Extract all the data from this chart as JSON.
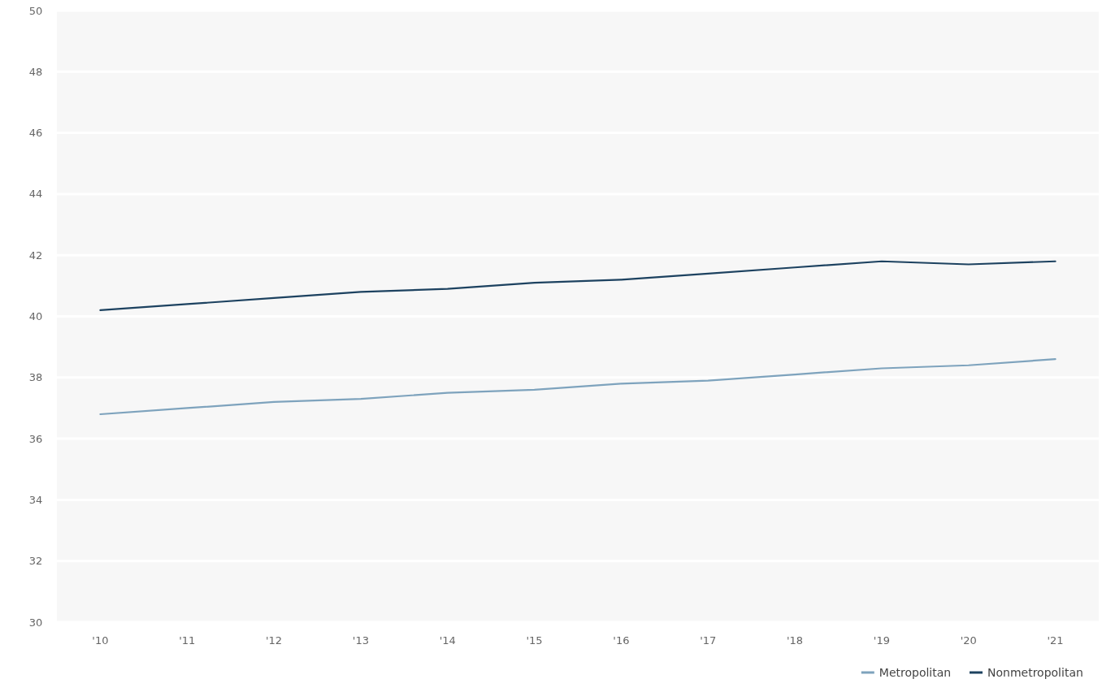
{
  "chart_data": {
    "type": "line",
    "categories": [
      "'10",
      "'11",
      "'12",
      "'13",
      "'14",
      "'15",
      "'16",
      "'17",
      "'18",
      "'19",
      "'20",
      "'21"
    ],
    "series": [
      {
        "name": "Metropolitan",
        "color": "#7ea3bd",
        "values": [
          36.8,
          37.0,
          37.2,
          37.3,
          37.5,
          37.6,
          37.8,
          37.9,
          38.1,
          38.3,
          38.4,
          38.6
        ]
      },
      {
        "name": "Nonmetropolitan",
        "color": "#1d4260",
        "values": [
          40.2,
          40.4,
          40.6,
          40.8,
          40.9,
          41.1,
          41.2,
          41.4,
          41.6,
          41.8,
          41.7,
          41.8
        ]
      }
    ],
    "ylim": [
      30,
      50
    ],
    "yticks": [
      30,
      32,
      34,
      36,
      38,
      40,
      42,
      44,
      46,
      48,
      50
    ],
    "grid": "y",
    "legend": "bottom right",
    "marker": "none",
    "line_style": "solid"
  }
}
